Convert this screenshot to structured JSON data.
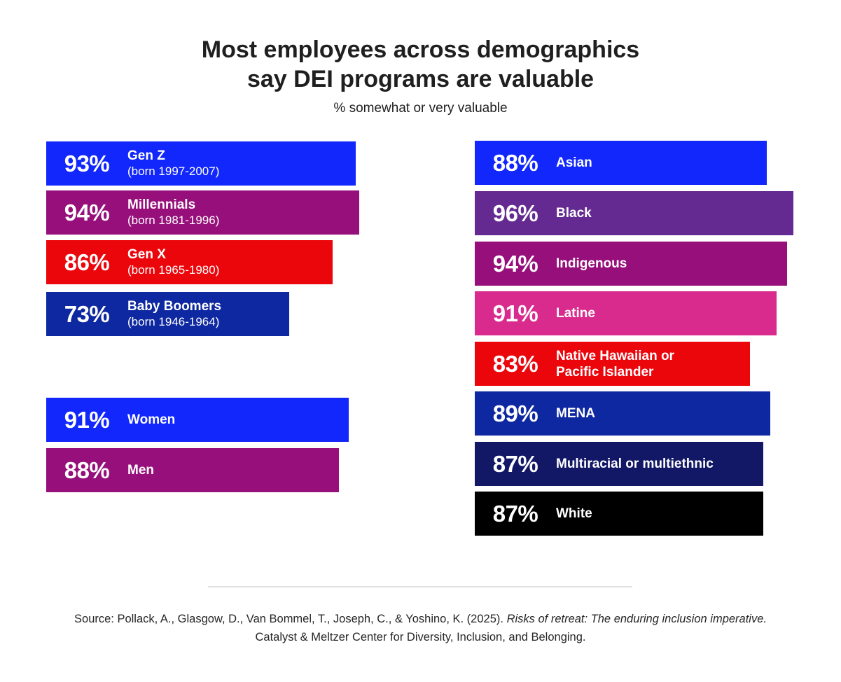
{
  "chart_data": {
    "type": "bar",
    "title": "Most employees across demographics\nsay DEI programs are valuable",
    "subtitle": "% somewhat or very valuable",
    "groups": [
      {
        "panel": "left-top",
        "bars": [
          {
            "label": "Gen Z",
            "sublabel": "(born 1997-2007)",
            "value": 93,
            "color": "#1127fc"
          },
          {
            "label": "Millennials",
            "sublabel": "(born 1981-1996)",
            "value": 94,
            "color": "#960f7a"
          },
          {
            "label": "Gen X",
            "sublabel": "(born 1965-1980)",
            "value": 86,
            "color": "#eb060c"
          },
          {
            "label": "Baby Boomers",
            "sublabel": "(born 1946-1964)",
            "value": 73,
            "color": "#0d28a0"
          }
        ]
      },
      {
        "panel": "left-bottom",
        "bars": [
          {
            "label": "Women",
            "value": 91,
            "color": "#1127fc"
          },
          {
            "label": "Men",
            "value": 88,
            "color": "#960f7a"
          }
        ]
      },
      {
        "panel": "right",
        "bars": [
          {
            "label": "Asian",
            "value": 88,
            "color": "#1127fc"
          },
          {
            "label": "Black",
            "value": 96,
            "color": "#652a91"
          },
          {
            "label": "Indigenous",
            "value": 94,
            "color": "#960f7a"
          },
          {
            "label": "Latine",
            "value": 91,
            "color": "#d92a8e"
          },
          {
            "label": "Native Hawaiian or Pacific Islander",
            "value": 83,
            "color": "#eb060c"
          },
          {
            "label": "MENA",
            "value": 89,
            "color": "#0d28a0"
          },
          {
            "label": "Multiracial or multiethnic",
            "value": 87,
            "color": "#121866"
          },
          {
            "label": "White",
            "value": 87,
            "color": "#000000"
          }
        ]
      }
    ]
  },
  "header": {
    "title_line1": "Most employees across demographics",
    "title_line2": "say DEI programs are valuable",
    "subtitle": "% somewhat or very valuable"
  },
  "labels": {
    "genz": {
      "pct": "93%",
      "name": "Gen Z",
      "sub": "(born 1997-2007)"
    },
    "millennials": {
      "pct": "94%",
      "name": "Millennials",
      "sub": "(born 1981-1996)"
    },
    "genx": {
      "pct": "86%",
      "name": "Gen X",
      "sub": "(born 1965-1980)"
    },
    "boomers": {
      "pct": "73%",
      "name": "Baby Boomers",
      "sub": "(born 1946-1964)"
    },
    "women": {
      "pct": "91%",
      "name": "Women"
    },
    "men": {
      "pct": "88%",
      "name": "Men"
    },
    "asian": {
      "pct": "88%",
      "name": "Asian"
    },
    "black": {
      "pct": "96%",
      "name": "Black"
    },
    "indigenous": {
      "pct": "94%",
      "name": "Indigenous"
    },
    "latine": {
      "pct": "91%",
      "name": "Latine"
    },
    "nhpi": {
      "pct": "83%",
      "name_line1": "Native Hawaiian or",
      "name_line2": "Pacific Islander"
    },
    "mena": {
      "pct": "89%",
      "name": "MENA"
    },
    "multiracial": {
      "pct": "87%",
      "name": "Multiracial or multiethnic"
    },
    "white": {
      "pct": "87%",
      "name": "White"
    }
  },
  "source": {
    "line1_prefix": "Source: Pollack, A., Glasgow, D., Van Bommel, T., Joseph, C., & Yoshino, K. (2025). ",
    "line1_italic": "Risks of retreat: The enduring inclusion imperative.",
    "line2": "Catalyst & Meltzer Center for Diversity, Inclusion, and Belonging."
  }
}
